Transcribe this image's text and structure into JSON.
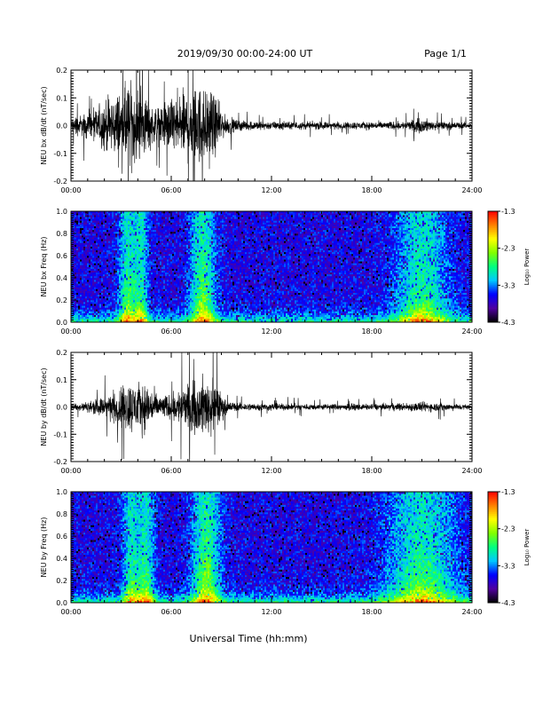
{
  "header": {
    "title": "2019/09/30  00:00-24:00 UT",
    "page": "Page 1/1"
  },
  "xlabel": "Universal Time (hh:mm)",
  "chart_data": [
    {
      "type": "line",
      "ylabel": "NEU bx dB/dt (nT/sec)",
      "xlim": [
        0,
        24
      ],
      "ylim": [
        -0.2,
        0.2
      ],
      "yticks": [
        "0.2",
        "0.1",
        "0.0",
        "-0.1",
        "-0.2"
      ],
      "xticks": [
        "00:00",
        "06:00",
        "12:00",
        "18:00",
        "24:00"
      ],
      "envelope": [
        {
          "x": 0,
          "y": 0.04
        },
        {
          "x": 1,
          "y": 0.06
        },
        {
          "x": 2,
          "y": 0.12
        },
        {
          "x": 2.5,
          "y": 0.14
        },
        {
          "x": 3.3,
          "y": 0.2
        },
        {
          "x": 3.9,
          "y": 0.18
        },
        {
          "x": 4.4,
          "y": 0.15
        },
        {
          "x": 5,
          "y": 0.08
        },
        {
          "x": 5.8,
          "y": 0.12
        },
        {
          "x": 6.3,
          "y": 0.15
        },
        {
          "x": 7.2,
          "y": 0.18
        },
        {
          "x": 8,
          "y": 0.2
        },
        {
          "x": 8.5,
          "y": 0.16
        },
        {
          "x": 9.2,
          "y": 0.05
        },
        {
          "x": 10,
          "y": 0.025
        },
        {
          "x": 12,
          "y": 0.02
        },
        {
          "x": 16,
          "y": 0.018
        },
        {
          "x": 20,
          "y": 0.02
        },
        {
          "x": 21,
          "y": 0.035
        },
        {
          "x": 22,
          "y": 0.02
        },
        {
          "x": 24,
          "y": 0.015
        }
      ]
    },
    {
      "type": "heatmap",
      "ylabel": "NEU bx Freq (Hz)",
      "xlim": [
        0,
        24
      ],
      "ylim": [
        0,
        1
      ],
      "yticks": [
        "1.0",
        "0.8",
        "0.6",
        "0.4",
        "0.2",
        "0.0"
      ],
      "xticks": [
        "00:00",
        "06:00",
        "12:00",
        "18:00",
        "24:00"
      ],
      "colorbar": {
        "label": "Log₁₀ Power",
        "ticks": [
          "-1.3",
          "-2.3",
          "-3.3",
          "-4.3"
        ],
        "range": [
          -4.3,
          -1.3
        ],
        "colors": [
          "#000000",
          "#5000a0",
          "#0000ff",
          "#00c8ff",
          "#00ff80",
          "#80ff00",
          "#ffff00",
          "#ff8000",
          "#ff0000"
        ]
      },
      "hotspots": [
        {
          "t": 3.4,
          "f": 0.5,
          "w": 0.5
        },
        {
          "t": 4.2,
          "f": 0.3,
          "w": 0.4
        },
        {
          "t": 7.9,
          "f": 0.85,
          "w": 0.7
        },
        {
          "t": 21,
          "f": 0.35,
          "w": 1.5
        }
      ]
    },
    {
      "type": "line",
      "ylabel": "NEU by dB/dt (nT/sec)",
      "xlim": [
        0,
        24
      ],
      "ylim": [
        -0.2,
        0.2
      ],
      "yticks": [
        "0.2",
        "0.1",
        "0.0",
        "-0.1",
        "-0.2"
      ],
      "xticks": [
        "00:00",
        "06:00",
        "12:00",
        "18:00",
        "24:00"
      ],
      "envelope": [
        {
          "x": 0,
          "y": 0.02
        },
        {
          "x": 1,
          "y": 0.025
        },
        {
          "x": 2,
          "y": 0.05
        },
        {
          "x": 2.6,
          "y": 0.08
        },
        {
          "x": 3.3,
          "y": 0.13
        },
        {
          "x": 3.9,
          "y": 0.12
        },
        {
          "x": 4.5,
          "y": 0.12
        },
        {
          "x": 5.2,
          "y": 0.06
        },
        {
          "x": 6,
          "y": 0.06
        },
        {
          "x": 6.5,
          "y": 0.09
        },
        {
          "x": 7.5,
          "y": 0.12
        },
        {
          "x": 8.2,
          "y": 0.16
        },
        {
          "x": 8.7,
          "y": 0.11
        },
        {
          "x": 9.3,
          "y": 0.03
        },
        {
          "x": 10,
          "y": 0.02
        },
        {
          "x": 14,
          "y": 0.015
        },
        {
          "x": 18,
          "y": 0.015
        },
        {
          "x": 20,
          "y": 0.02
        },
        {
          "x": 21,
          "y": 0.025
        },
        {
          "x": 24,
          "y": 0.012
        }
      ]
    },
    {
      "type": "heatmap",
      "ylabel": "NEU by Freq (Hz)",
      "xlim": [
        0,
        24
      ],
      "ylim": [
        0,
        1
      ],
      "yticks": [
        "1.0",
        "0.8",
        "0.6",
        "0.4",
        "0.2",
        "0.0"
      ],
      "xticks": [
        "00:00",
        "06:00",
        "12:00",
        "18:00",
        "24:00"
      ],
      "colorbar": {
        "label": "Log₁₀ Power",
        "ticks": [
          "-1.3",
          "-2.3",
          "-3.3",
          "-4.3"
        ],
        "range": [
          -4.3,
          -1.3
        ],
        "colors": [
          "#000000",
          "#5000a0",
          "#0000ff",
          "#00c8ff",
          "#00ff80",
          "#80ff00",
          "#ffff00",
          "#ff8000",
          "#ff0000"
        ]
      },
      "hotspots": [
        {
          "t": 3.6,
          "f": 0.3,
          "w": 0.5
        },
        {
          "t": 4.5,
          "f": 0.35,
          "w": 0.5
        },
        {
          "t": 8.1,
          "f": 1.0,
          "w": 0.8
        },
        {
          "t": 21,
          "f": 0.45,
          "w": 2.0
        }
      ]
    }
  ]
}
